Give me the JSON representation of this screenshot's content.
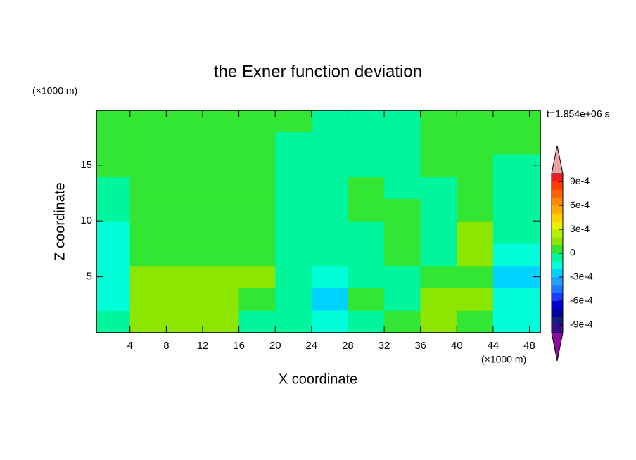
{
  "chart_data": {
    "type": "contour",
    "title": "the Exner function deviation",
    "x_label": "X coordinate",
    "y_label": "Z coordinate",
    "x_unit": "(×1000 m)",
    "y_unit": "(×1000 m)",
    "time_label": "t=1.854e+06 s",
    "xlim": [
      0.3,
      49.2
    ],
    "ylim": [
      0,
      19.9
    ],
    "xticks": [
      4,
      8,
      12,
      16,
      20,
      24,
      28,
      32,
      36,
      40,
      44,
      48
    ],
    "yticks": [
      5,
      10,
      15
    ],
    "x": [
      2,
      6,
      10,
      14,
      18,
      22,
      26,
      30,
      34,
      38,
      42,
      46
    ],
    "y": [
      1,
      3,
      5,
      7,
      9,
      11,
      13,
      15,
      17,
      19
    ],
    "z": [
      [
        -0.0001,
        0.00015,
        0.0001,
        0.0001,
        -0.0001,
        -5e-05,
        -0.00015,
        -5e-05,
        5e-05,
        0.00015,
        5e-05,
        -0.00015
      ],
      [
        -0.00015,
        0.0001,
        0.00015,
        0.00015,
        5e-05,
        -0.0001,
        -0.00025,
        5e-05,
        -5e-05,
        0.00015,
        0.0001,
        -0.00015
      ],
      [
        -0.00015,
        0.00015,
        0.00015,
        0.00015,
        0.00015,
        -5e-05,
        -0.00015,
        -5e-05,
        -5e-05,
        5e-05,
        5e-05,
        -0.00025
      ],
      [
        -0.00015,
        5e-05,
        5e-05,
        5e-05,
        5e-05,
        -5e-05,
        -5e-05,
        -5e-05,
        5e-05,
        -5e-05,
        0.00015,
        -0.00015
      ],
      [
        -0.00015,
        5e-05,
        5e-05,
        5e-05,
        5e-05,
        -5e-05,
        -5e-05,
        -5e-05,
        5e-05,
        -5e-05,
        0.00015,
        -5e-05
      ],
      [
        -5e-05,
        5e-05,
        5e-05,
        5e-05,
        5e-05,
        -5e-05,
        -5e-05,
        5e-05,
        5e-05,
        -5e-05,
        5e-05,
        -5e-05
      ],
      [
        -5e-05,
        5e-05,
        5e-05,
        5e-05,
        5e-05,
        -5e-05,
        -5e-05,
        5e-05,
        -5e-05,
        -5e-05,
        5e-05,
        -5e-05
      ],
      [
        5e-05,
        5e-05,
        5e-05,
        5e-05,
        5e-05,
        -5e-05,
        -5e-05,
        -5e-05,
        -5e-05,
        5e-05,
        5e-05,
        -5e-05
      ],
      [
        5e-05,
        5e-05,
        5e-05,
        5e-05,
        5e-05,
        -5e-05,
        -5e-05,
        -5e-05,
        -5e-05,
        5e-05,
        5e-05,
        5e-05
      ],
      [
        5e-05,
        5e-05,
        5e-05,
        5e-05,
        5e-05,
        5e-05,
        -5e-05,
        -5e-05,
        -5e-05,
        5e-05,
        5e-05,
        5e-05
      ]
    ],
    "zlim": [
      -0.001,
      0.001
    ],
    "colorbar_ticks": [
      {
        "value": -0.0009,
        "label": "-9e-4"
      },
      {
        "value": -0.0006,
        "label": "-6e-4"
      },
      {
        "value": -0.0003,
        "label": "-3e-4"
      },
      0,
      {
        "value": 0.0003,
        "label": "3e-4"
      },
      {
        "value": 0.0006,
        "label": "6e-4"
      },
      {
        "value": 0.0009,
        "label": "9e-4"
      }
    ],
    "colors": [
      "#3a0a8c",
      "#1a1a80",
      "#0000a0",
      "#0000d0",
      "#1a3cff",
      "#1e78ff",
      "#1ea0ff",
      "#00d2ff",
      "#00ffd8",
      "#00f59c",
      "#33e633",
      "#8ce600",
      "#b4f000",
      "#e6f000",
      "#ffd200",
      "#ffaa00",
      "#ff8c00",
      "#ff6400",
      "#ff3c00",
      "#f01e1e"
    ],
    "over_color": "#f0a0a0",
    "under_color": "#8c0aa0"
  }
}
